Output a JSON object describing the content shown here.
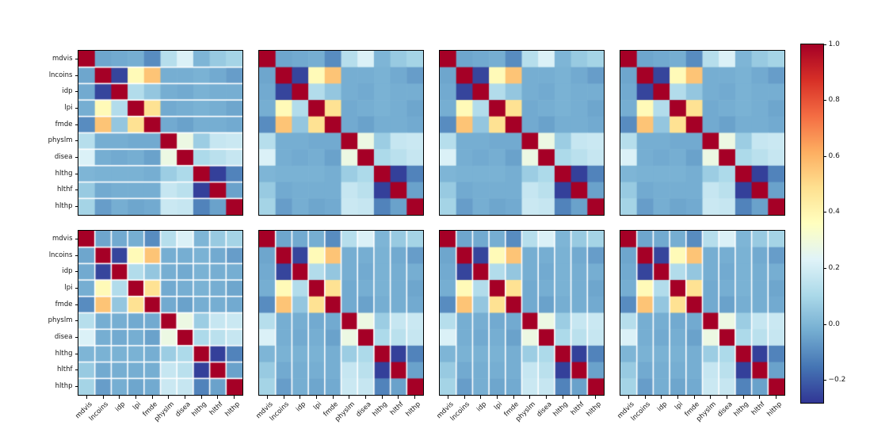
{
  "chart_data": {
    "type": "heatmap",
    "title": "",
    "description": "Grid of 2x4 correlation-matrix heatmaps of the same ten variables, sharing one vertical colorbar",
    "variables": [
      "mdvis",
      "lncoins",
      "idp",
      "lpi",
      "fmde",
      "physlm",
      "disea",
      "hlthg",
      "hlthf",
      "hlthp"
    ],
    "correlation_matrix": [
      [
        1.0,
        -0.04,
        -0.03,
        -0.02,
        -0.1,
        0.13,
        0.22,
        0.0,
        0.06,
        0.09
      ],
      [
        -0.04,
        1.0,
        -0.25,
        0.38,
        0.56,
        -0.02,
        -0.02,
        -0.01,
        -0.03,
        -0.06
      ],
      [
        -0.03,
        -0.25,
        1.0,
        0.12,
        0.05,
        -0.02,
        -0.03,
        -0.01,
        -0.02,
        -0.02
      ],
      [
        -0.02,
        0.38,
        0.12,
        1.0,
        0.48,
        -0.03,
        -0.02,
        -0.01,
        -0.02,
        -0.04
      ],
      [
        -0.1,
        0.56,
        0.05,
        0.48,
        1.0,
        -0.03,
        -0.05,
        -0.02,
        -0.02,
        -0.03
      ],
      [
        0.13,
        -0.02,
        -0.02,
        -0.03,
        -0.03,
        1.0,
        0.28,
        0.07,
        0.17,
        0.18
      ],
      [
        0.22,
        -0.02,
        -0.03,
        -0.02,
        -0.05,
        0.28,
        1.0,
        0.11,
        0.14,
        0.17
      ],
      [
        0.0,
        -0.01,
        -0.01,
        -0.01,
        -0.02,
        0.07,
        0.11,
        1.0,
        -0.26,
        -0.12
      ],
      [
        0.06,
        -0.03,
        -0.02,
        -0.02,
        -0.02,
        0.17,
        0.14,
        -0.26,
        1.0,
        -0.05
      ],
      [
        0.09,
        -0.06,
        -0.02,
        -0.04,
        -0.03,
        0.18,
        0.17,
        -0.12,
        -0.05,
        1.0
      ]
    ],
    "vmin": -0.28,
    "vmax": 1.0,
    "colormap": "RdYlBu_r",
    "colormap_stops": [
      "#313695",
      "#4575b4",
      "#74add1",
      "#abd9e9",
      "#e0f3f8",
      "#ffffbf",
      "#fee090",
      "#fdae61",
      "#f46d43",
      "#d73027",
      "#a50026"
    ],
    "separator_color": "#ffffff",
    "grid": {
      "rows": 2,
      "cols": 4
    },
    "panels": [
      {
        "id": "panel-r0c0",
        "row": 0,
        "col": 0,
        "separators": "horizontal",
        "show_y_labels": true,
        "show_x_labels": false
      },
      {
        "id": "panel-r0c1",
        "row": 0,
        "col": 1,
        "separators": "none",
        "show_y_labels": false,
        "show_x_labels": false
      },
      {
        "id": "panel-r0c2",
        "row": 0,
        "col": 2,
        "separators": "none",
        "show_y_labels": false,
        "show_x_labels": false
      },
      {
        "id": "panel-r0c3",
        "row": 0,
        "col": 3,
        "separators": "none",
        "show_y_labels": false,
        "show_x_labels": false
      },
      {
        "id": "panel-r1c0",
        "row": 1,
        "col": 0,
        "separators": "both",
        "show_y_labels": true,
        "show_x_labels": true
      },
      {
        "id": "panel-r1c1",
        "row": 1,
        "col": 1,
        "separators": "vertical",
        "show_y_labels": false,
        "show_x_labels": true
      },
      {
        "id": "panel-r1c2",
        "row": 1,
        "col": 2,
        "separators": "vertical",
        "show_y_labels": false,
        "show_x_labels": true
      },
      {
        "id": "panel-r1c3",
        "row": 1,
        "col": 3,
        "separators": "vertical",
        "show_y_labels": false,
        "show_x_labels": true
      }
    ],
    "x_tick_rotation": 45,
    "colorbar": {
      "ticks": [
        1.0,
        0.8,
        0.6,
        0.4,
        0.2,
        0.0,
        -0.2
      ],
      "tick_labels": [
        "1.0",
        "0.8",
        "0.6",
        "0.4",
        "0.2",
        "0.0",
        "−0.2"
      ],
      "orientation": "vertical",
      "position": "right"
    }
  }
}
